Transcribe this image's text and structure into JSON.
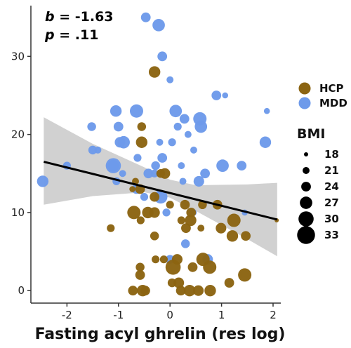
{
  "chart_data": {
    "type": "scatter",
    "xlabel": "Fasting acyl ghrelin (res log)",
    "ylabel": "",
    "xlim": [
      -2.7,
      2.15
    ],
    "ylim": [
      -1.6,
      36.5
    ],
    "x_ticks": [
      -2,
      -1,
      0,
      1,
      2
    ],
    "y_ticks": [
      0,
      10,
      20,
      30
    ],
    "annotation": {
      "b_label": "b",
      "b_value": " = -1.63",
      "p_label": "p",
      "p_value": " = .11"
    },
    "regression": {
      "x": [
        -2.45,
        2.08
      ],
      "y": [
        16.5,
        9.1
      ],
      "ci_x": [
        -2.45,
        -1.5,
        -0.5,
        0.0,
        0.5,
        1.5,
        2.08
      ],
      "ci_lower": [
        11.0,
        12.1,
        12.6,
        11.9,
        10.2,
        6.6,
        4.4
      ],
      "ci_upper": [
        22.2,
        18.8,
        15.8,
        14.2,
        13.5,
        13.6,
        13.8
      ],
      "line_color": "#000000",
      "band_color": "#c9c9c9"
    },
    "legend": {
      "group_title": "",
      "groups": [
        {
          "name": "HCP",
          "color": "#8b6412"
        },
        {
          "name": "MDD",
          "color": "#6d9aea"
        }
      ],
      "size_title": "BMI",
      "sizes": [
        18,
        21,
        24,
        27,
        30,
        33
      ]
    },
    "series": [
      {
        "name": "MDD",
        "color": "#6d9aea",
        "points": [
          [
            -0.47,
            35,
            24
          ],
          [
            -0.22,
            34,
            27
          ],
          [
            -0.15,
            30,
            24
          ],
          [
            0.0,
            27,
            21
          ],
          [
            0.9,
            25,
            24
          ],
          [
            1.07,
            25,
            20
          ],
          [
            1.88,
            23,
            20
          ],
          [
            -1.05,
            23,
            26
          ],
          [
            -0.65,
            23,
            28
          ],
          [
            0.11,
            23,
            27
          ],
          [
            0.28,
            22,
            24
          ],
          [
            0.58,
            22,
            28
          ],
          [
            0.6,
            21,
            27
          ],
          [
            -1.52,
            21,
            23
          ],
          [
            -1.4,
            18,
            21
          ],
          [
            -1.0,
            21,
            24
          ],
          [
            -0.9,
            19,
            27
          ],
          [
            0.15,
            21,
            22
          ],
          [
            0.35,
            20,
            21
          ],
          [
            0.04,
            19,
            22
          ],
          [
            -0.2,
            19,
            21
          ],
          [
            -0.97,
            19,
            25
          ],
          [
            -1.1,
            16,
            30
          ],
          [
            -0.63,
            17,
            22
          ],
          [
            -0.15,
            17,
            24
          ],
          [
            0.46,
            18,
            21
          ],
          [
            1.85,
            19,
            26
          ],
          [
            1.02,
            16,
            27
          ],
          [
            1.39,
            16,
            24
          ],
          [
            0.22,
            16,
            21
          ],
          [
            -1.5,
            18,
            23
          ],
          [
            -0.42,
            15,
            24
          ],
          [
            -0.3,
            15,
            22
          ],
          [
            0.68,
            15,
            24
          ],
          [
            0.56,
            14,
            25
          ],
          [
            -1.04,
            14,
            22
          ],
          [
            -2.47,
            14,
            26
          ],
          [
            -2.0,
            16,
            22
          ],
          [
            -0.65,
            13,
            24
          ],
          [
            -0.5,
            12,
            22
          ],
          [
            -0.18,
            12,
            28
          ],
          [
            0.25,
            14,
            21
          ],
          [
            -0.28,
            16,
            23
          ],
          [
            -1.1,
            16,
            26
          ],
          [
            -0.92,
            15,
            21
          ],
          [
            0.3,
            6,
            23
          ],
          [
            0.0,
            4,
            23
          ],
          [
            0.73,
            4,
            25
          ],
          [
            -0.07,
            10,
            22
          ],
          [
            0.45,
            10,
            21
          ],
          [
            1.45,
            10,
            20
          ]
        ]
      },
      {
        "name": "HCP",
        "color": "#8b6412",
        "points": [
          [
            -0.3,
            28,
            26
          ],
          [
            -0.55,
            21,
            23
          ],
          [
            -0.55,
            19,
            26
          ],
          [
            -0.67,
            14,
            21
          ],
          [
            -0.18,
            15,
            23
          ],
          [
            -0.73,
            13,
            20
          ],
          [
            -0.58,
            13,
            24
          ],
          [
            -0.3,
            12,
            24
          ],
          [
            0.0,
            11,
            22
          ],
          [
            -0.1,
            15,
            25
          ],
          [
            -0.7,
            10,
            28
          ],
          [
            -0.43,
            10,
            26
          ],
          [
            -0.3,
            10,
            25
          ],
          [
            -0.57,
            9,
            22
          ],
          [
            0.29,
            11,
            24
          ],
          [
            0.41,
            10,
            24
          ],
          [
            0.63,
            11,
            23
          ],
          [
            0.92,
            11,
            24
          ],
          [
            0.22,
            9,
            22
          ],
          [
            0.31,
            8,
            24
          ],
          [
            0.4,
            9,
            26
          ],
          [
            0.99,
            8,
            25
          ],
          [
            1.24,
            9,
            28
          ],
          [
            1.21,
            7,
            26
          ],
          [
            1.47,
            7,
            24
          ],
          [
            -1.15,
            8,
            22
          ],
          [
            -0.3,
            7,
            23
          ],
          [
            2.07,
            9,
            18
          ],
          [
            -0.58,
            3,
            23
          ],
          [
            -0.58,
            2,
            24
          ],
          [
            -0.28,
            4,
            22
          ],
          [
            -0.12,
            4,
            22
          ],
          [
            0.06,
            3,
            30
          ],
          [
            0.14,
            4,
            25
          ],
          [
            0.44,
            3,
            24
          ],
          [
            0.64,
            4,
            28
          ],
          [
            0.77,
            3,
            28
          ],
          [
            0.04,
            1,
            23
          ],
          [
            0.17,
            1,
            25
          ],
          [
            0.38,
            0,
            26
          ],
          [
            0.21,
            0,
            24
          ],
          [
            0.55,
            0,
            25
          ],
          [
            0.78,
            0,
            26
          ],
          [
            -0.53,
            0,
            26
          ],
          [
            -0.72,
            0,
            24
          ],
          [
            -0.48,
            0,
            24
          ],
          [
            1.15,
            1,
            24
          ],
          [
            1.45,
            2,
            28
          ],
          [
            0.6,
            8,
            21
          ]
        ]
      }
    ]
  }
}
